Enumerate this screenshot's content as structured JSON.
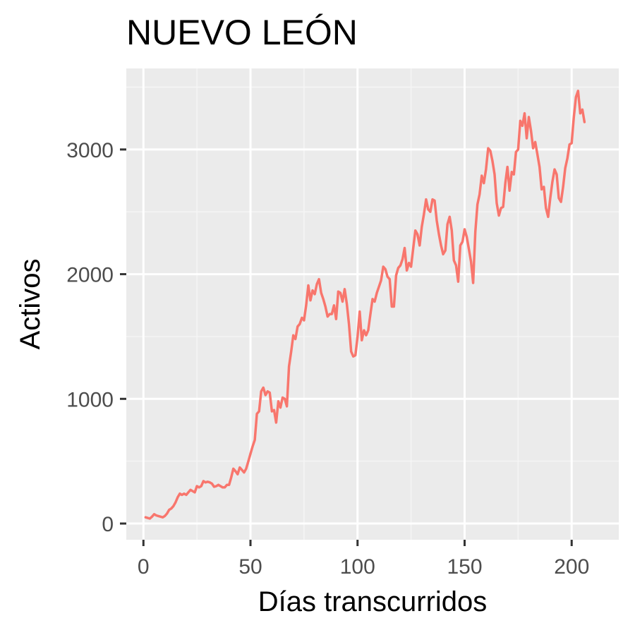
{
  "colors": {
    "panel_background": "#ebebeb",
    "grid_major": "#ffffff",
    "grid_minor": "#f5f5f5",
    "series": "#f8766d",
    "tick": "#333333"
  },
  "chart_data": {
    "type": "line",
    "title": "NUEVO LEÓN",
    "xlabel": "Días transcurridos",
    "ylabel": "Activos",
    "xlim": [
      -8,
      222
    ],
    "ylim": [
      -130,
      3650
    ],
    "x_ticks": [
      0,
      50,
      100,
      150,
      200
    ],
    "x_tick_labels": [
      "0",
      "50",
      "100",
      "150",
      "200"
    ],
    "y_ticks": [
      0,
      1000,
      2000,
      3000
    ],
    "y_tick_labels": [
      "0",
      "1000",
      "2000",
      "3000"
    ],
    "grid": true,
    "legend": "none",
    "series": [
      {
        "color": "#f8766d",
        "points": [
          [
            1,
            50
          ],
          [
            2,
            45
          ],
          [
            3,
            40
          ],
          [
            4,
            55
          ],
          [
            5,
            75
          ],
          [
            6,
            65
          ],
          [
            7,
            60
          ],
          [
            8,
            55
          ],
          [
            9,
            50
          ],
          [
            10,
            60
          ],
          [
            11,
            80
          ],
          [
            12,
            110
          ],
          [
            13,
            120
          ],
          [
            14,
            140
          ],
          [
            15,
            170
          ],
          [
            16,
            210
          ],
          [
            17,
            240
          ],
          [
            18,
            230
          ],
          [
            19,
            240
          ],
          [
            20,
            230
          ],
          [
            21,
            250
          ],
          [
            22,
            270
          ],
          [
            23,
            260
          ],
          [
            24,
            250
          ],
          [
            25,
            300
          ],
          [
            26,
            290
          ],
          [
            27,
            300
          ],
          [
            28,
            340
          ],
          [
            29,
            330
          ],
          [
            30,
            335
          ],
          [
            31,
            330
          ],
          [
            32,
            320
          ],
          [
            33,
            295
          ],
          [
            34,
            300
          ],
          [
            35,
            310
          ],
          [
            36,
            300
          ],
          [
            37,
            290
          ],
          [
            38,
            290
          ],
          [
            39,
            310
          ],
          [
            40,
            310
          ],
          [
            41,
            370
          ],
          [
            42,
            440
          ],
          [
            43,
            420
          ],
          [
            44,
            395
          ],
          [
            45,
            450
          ],
          [
            46,
            430
          ],
          [
            47,
            410
          ],
          [
            48,
            440
          ],
          [
            49,
            500
          ],
          [
            50,
            560
          ],
          [
            51,
            620
          ],
          [
            52,
            670
          ],
          [
            53,
            880
          ],
          [
            54,
            900
          ],
          [
            55,
            1060
          ],
          [
            56,
            1090
          ],
          [
            57,
            1030
          ],
          [
            58,
            1060
          ],
          [
            59,
            1050
          ],
          [
            60,
            900
          ],
          [
            61,
            910
          ],
          [
            62,
            810
          ],
          [
            63,
            980
          ],
          [
            64,
            930
          ],
          [
            65,
            1010
          ],
          [
            66,
            1000
          ],
          [
            67,
            940
          ],
          [
            68,
            1260
          ],
          [
            69,
            1380
          ],
          [
            70,
            1510
          ],
          [
            71,
            1480
          ],
          [
            72,
            1580
          ],
          [
            73,
            1600
          ],
          [
            74,
            1650
          ],
          [
            75,
            1630
          ],
          [
            76,
            1750
          ],
          [
            77,
            1910
          ],
          [
            78,
            1790
          ],
          [
            79,
            1870
          ],
          [
            80,
            1840
          ],
          [
            81,
            1920
          ],
          [
            82,
            1960
          ],
          [
            83,
            1850
          ],
          [
            84,
            1800
          ],
          [
            85,
            1740
          ],
          [
            86,
            1660
          ],
          [
            87,
            1680
          ],
          [
            88,
            1680
          ],
          [
            89,
            1750
          ],
          [
            90,
            1640
          ],
          [
            91,
            1860
          ],
          [
            92,
            1850
          ],
          [
            93,
            1780
          ],
          [
            94,
            1880
          ],
          [
            95,
            1760
          ],
          [
            96,
            1600
          ],
          [
            97,
            1380
          ],
          [
            98,
            1340
          ],
          [
            99,
            1350
          ],
          [
            100,
            1500
          ],
          [
            101,
            1700
          ],
          [
            102,
            1470
          ],
          [
            103,
            1550
          ],
          [
            104,
            1510
          ],
          [
            105,
            1550
          ],
          [
            106,
            1680
          ],
          [
            107,
            1800
          ],
          [
            108,
            1780
          ],
          [
            109,
            1850
          ],
          [
            110,
            1900
          ],
          [
            111,
            1950
          ],
          [
            112,
            2060
          ],
          [
            113,
            2040
          ],
          [
            114,
            1980
          ],
          [
            115,
            1960
          ],
          [
            116,
            1740
          ],
          [
            117,
            1740
          ],
          [
            118,
            1990
          ],
          [
            119,
            2050
          ],
          [
            120,
            2070
          ],
          [
            121,
            2120
          ],
          [
            122,
            2210
          ],
          [
            123,
            2030
          ],
          [
            124,
            2090
          ],
          [
            125,
            2060
          ],
          [
            126,
            2210
          ],
          [
            127,
            2350
          ],
          [
            128,
            2320
          ],
          [
            129,
            2230
          ],
          [
            130,
            2380
          ],
          [
            131,
            2480
          ],
          [
            132,
            2600
          ],
          [
            133,
            2520
          ],
          [
            134,
            2500
          ],
          [
            135,
            2600
          ],
          [
            136,
            2590
          ],
          [
            137,
            2430
          ],
          [
            138,
            2320
          ],
          [
            139,
            2230
          ],
          [
            140,
            2160
          ],
          [
            141,
            2190
          ],
          [
            142,
            2400
          ],
          [
            143,
            2460
          ],
          [
            144,
            2350
          ],
          [
            145,
            2110
          ],
          [
            146,
            2070
          ],
          [
            147,
            1940
          ],
          [
            148,
            2230
          ],
          [
            149,
            2260
          ],
          [
            150,
            2360
          ],
          [
            151,
            2300
          ],
          [
            152,
            2200
          ],
          [
            153,
            2100
          ],
          [
            154,
            1930
          ],
          [
            155,
            2340
          ],
          [
            156,
            2560
          ],
          [
            157,
            2640
          ],
          [
            158,
            2790
          ],
          [
            159,
            2730
          ],
          [
            160,
            2840
          ],
          [
            161,
            3010
          ],
          [
            162,
            2990
          ],
          [
            163,
            2910
          ],
          [
            164,
            2800
          ],
          [
            165,
            2570
          ],
          [
            166,
            2470
          ],
          [
            167,
            2530
          ],
          [
            168,
            2540
          ],
          [
            169,
            2730
          ],
          [
            170,
            2860
          ],
          [
            171,
            2670
          ],
          [
            172,
            2820
          ],
          [
            173,
            2800
          ],
          [
            174,
            2980
          ],
          [
            175,
            3000
          ],
          [
            176,
            3230
          ],
          [
            177,
            3190
          ],
          [
            178,
            3290
          ],
          [
            179,
            3090
          ],
          [
            180,
            3260
          ],
          [
            181,
            3150
          ],
          [
            182,
            3010
          ],
          [
            183,
            3060
          ],
          [
            184,
            2960
          ],
          [
            185,
            2860
          ],
          [
            186,
            2680
          ],
          [
            187,
            2700
          ],
          [
            188,
            2530
          ],
          [
            189,
            2460
          ],
          [
            190,
            2610
          ],
          [
            191,
            2740
          ],
          [
            192,
            2840
          ],
          [
            193,
            2800
          ],
          [
            194,
            2610
          ],
          [
            195,
            2580
          ],
          [
            196,
            2700
          ],
          [
            197,
            2850
          ],
          [
            198,
            2930
          ],
          [
            199,
            3040
          ],
          [
            200,
            3050
          ],
          [
            201,
            3260
          ],
          [
            202,
            3420
          ],
          [
            203,
            3470
          ],
          [
            204,
            3290
          ],
          [
            205,
            3320
          ],
          [
            206,
            3220
          ]
        ]
      }
    ]
  }
}
